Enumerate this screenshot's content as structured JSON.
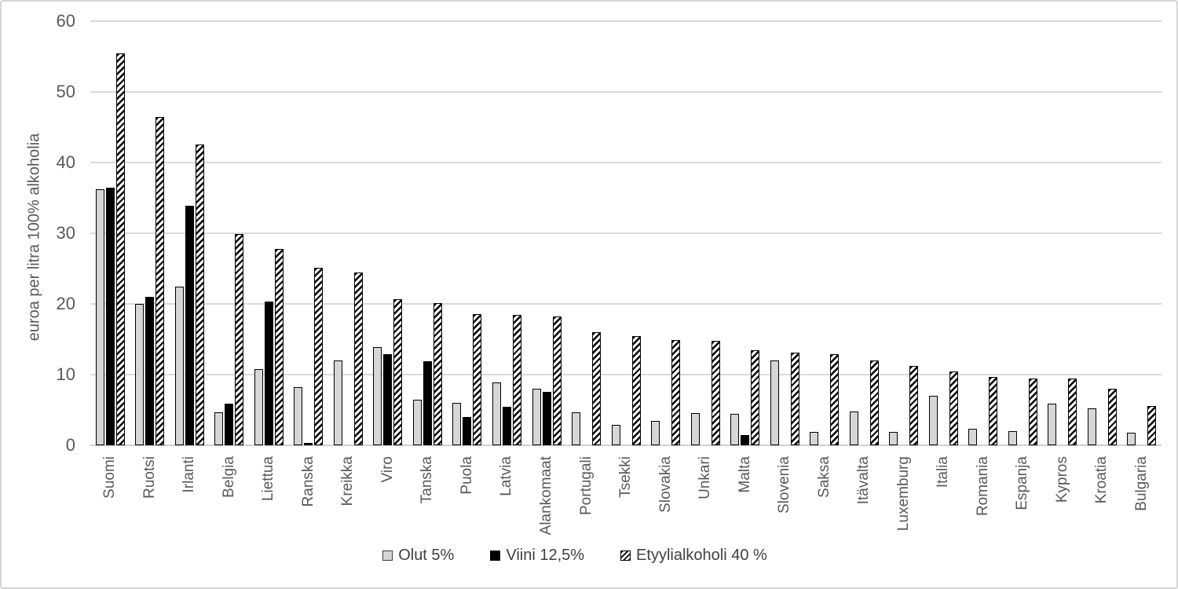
{
  "chart_data": {
    "type": "bar",
    "title": "",
    "ylabel": "euroa per litra 100% alkoholia",
    "xlabel": "",
    "ylim": [
      0,
      60
    ],
    "yticks": [
      0,
      10,
      20,
      30,
      40,
      50,
      60
    ],
    "grid": "horizontal",
    "legend_position": "bottom",
    "categories": [
      "Suomi",
      "Ruotsi",
      "Irlanti",
      "Belgia",
      "Liettua",
      "Ranska",
      "Kreikka",
      "Viro",
      "Tanska",
      "Puola",
      "Latvia",
      "Alankomaat",
      "Portugali",
      "Tsekki",
      "Slovakia",
      "Unkari",
      "Malta",
      "Slovenia",
      "Saksa",
      "Itävalta",
      "Luxemburg",
      "Italia",
      "Romania",
      "Espanja",
      "Kypros",
      "Kroatia",
      "Bulgaria"
    ],
    "series": [
      {
        "name": "Olut 5%",
        "style": "solid-light-gray",
        "fill": "#d6d6d6",
        "values": [
          36.2,
          20.0,
          22.5,
          4.7,
          10.8,
          8.2,
          12.0,
          13.9,
          6.4,
          6.0,
          8.9,
          8.0,
          4.7,
          2.9,
          3.5,
          4.6,
          4.4,
          12.0,
          1.9,
          4.8,
          1.9,
          7.0,
          2.3,
          2.0,
          5.9,
          5.2,
          1.8
        ]
      },
      {
        "name": "Viini 12,5%",
        "style": "solid-black",
        "fill": "#000000",
        "values": [
          36.4,
          21.0,
          33.9,
          5.9,
          20.3,
          0.3,
          0,
          12.9,
          11.9,
          4.0,
          5.5,
          7.6,
          0,
          0,
          0,
          0,
          1.5,
          0,
          0,
          0,
          0,
          0,
          0,
          0,
          0,
          0,
          0
        ]
      },
      {
        "name": "Etyylialkoholi 40 %",
        "style": "diagonal-hatch",
        "fill": "hatch-black-on-white",
        "values": [
          55.4,
          46.5,
          42.6,
          29.9,
          27.8,
          25.1,
          24.4,
          20.7,
          20.1,
          18.6,
          18.5,
          18.2,
          16.0,
          15.4,
          14.9,
          14.8,
          13.5,
          13.1,
          12.9,
          12.0,
          11.2,
          10.4,
          9.7,
          9.5,
          9.5,
          8.0,
          5.6
        ]
      }
    ]
  },
  "colors": {
    "axis_text": "#595959",
    "gridline": "#dadada",
    "frame_border": "#d4d4d4",
    "bar_outline": "#000000"
  }
}
